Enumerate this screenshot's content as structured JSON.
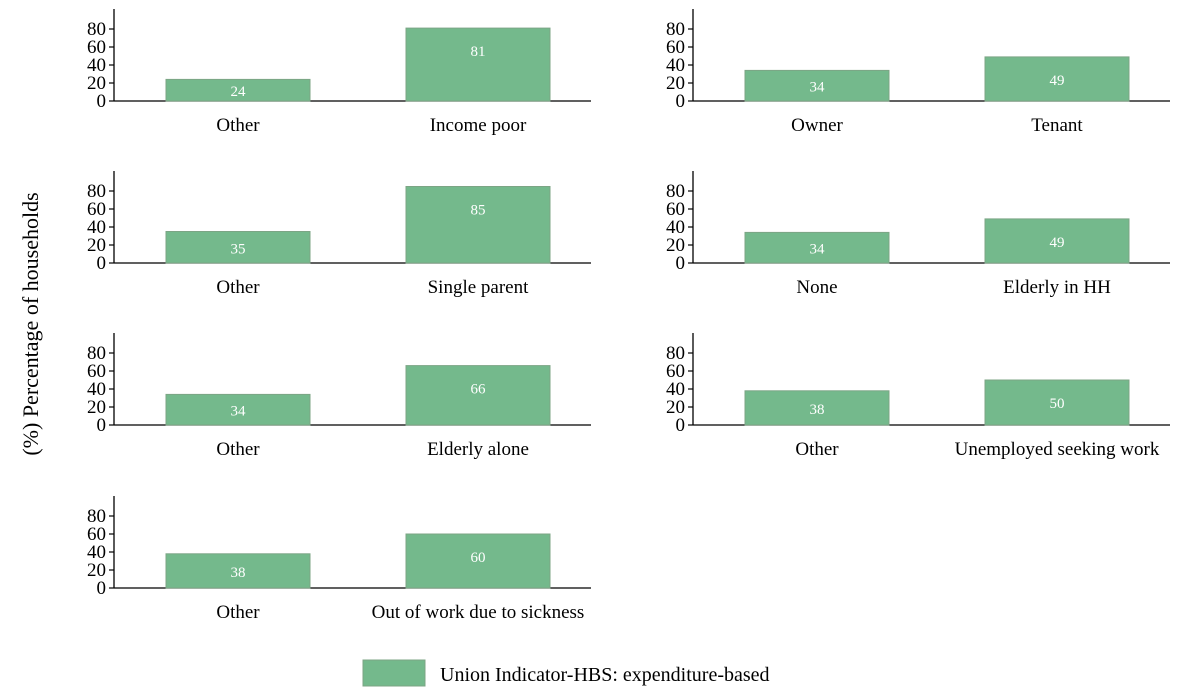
{
  "ylabel": "(%) Percentage of households",
  "legend": {
    "label": "Union Indicator-HBS: expenditure-based",
    "color": "#74b98c"
  },
  "chart_data": [
    {
      "type": "bar",
      "categories": [
        "Other",
        "Income poor"
      ],
      "values": [
        24,
        81
      ],
      "ylim": [
        0,
        100
      ],
      "yticks": [
        0,
        20,
        40,
        60,
        80
      ]
    },
    {
      "type": "bar",
      "categories": [
        "Owner",
        "Tenant"
      ],
      "values": [
        34,
        49
      ],
      "ylim": [
        0,
        100
      ],
      "yticks": [
        0,
        20,
        40,
        60,
        80
      ]
    },
    {
      "type": "bar",
      "categories": [
        "Other",
        "Single parent"
      ],
      "values": [
        35,
        85
      ],
      "ylim": [
        0,
        100
      ],
      "yticks": [
        0,
        20,
        40,
        60,
        80
      ]
    },
    {
      "type": "bar",
      "categories": [
        "None",
        "Elderly in HH"
      ],
      "values": [
        34,
        49
      ],
      "ylim": [
        0,
        100
      ],
      "yticks": [
        0,
        20,
        40,
        60,
        80
      ]
    },
    {
      "type": "bar",
      "categories": [
        "Other",
        "Elderly alone"
      ],
      "values": [
        34,
        66
      ],
      "ylim": [
        0,
        100
      ],
      "yticks": [
        0,
        20,
        40,
        60,
        80
      ]
    },
    {
      "type": "bar",
      "categories": [
        "Other",
        "Unemployed seeking work"
      ],
      "values": [
        38,
        50
      ],
      "ylim": [
        0,
        100
      ],
      "yticks": [
        0,
        20,
        40,
        60,
        80
      ]
    },
    {
      "type": "bar",
      "categories": [
        "Other",
        "Out of work due to sickness"
      ],
      "values": [
        38,
        60
      ],
      "ylim": [
        0,
        100
      ],
      "yticks": [
        0,
        20,
        40,
        60,
        80
      ]
    }
  ]
}
